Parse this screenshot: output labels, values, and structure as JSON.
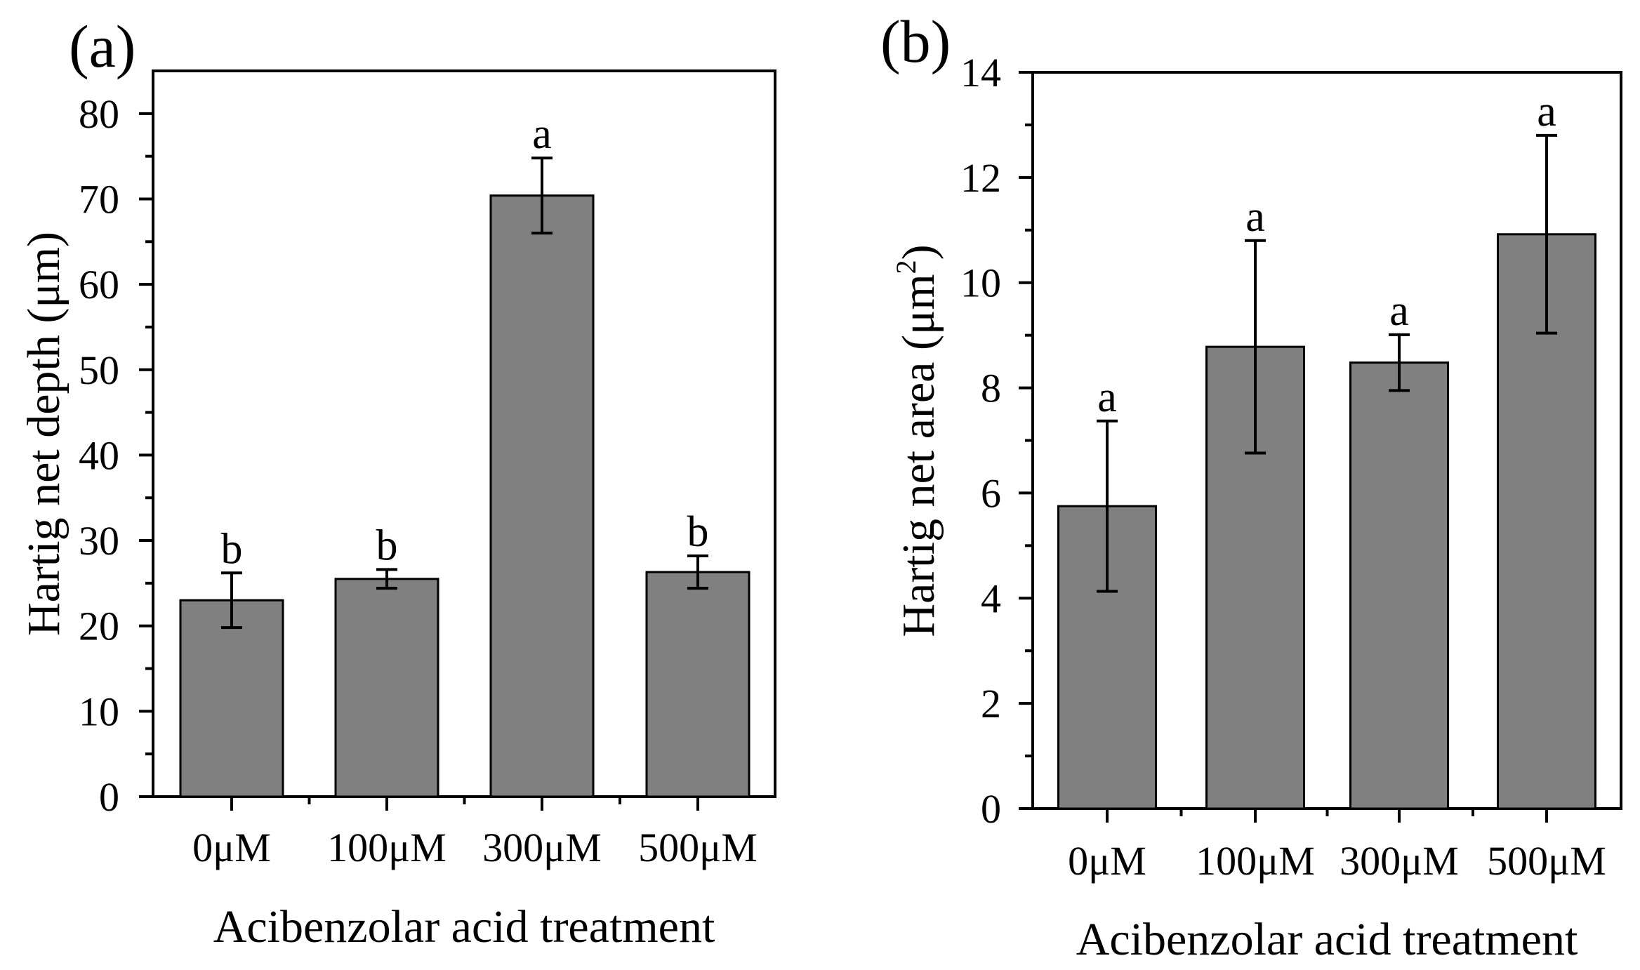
{
  "chart_data": [
    {
      "panel_label": "(a)",
      "type": "bar",
      "categories": [
        "0μM",
        "100μM",
        "300μM",
        "500μM"
      ],
      "values": [
        23.0,
        25.5,
        70.4,
        26.3
      ],
      "errors": [
        3.2,
        1.1,
        4.4,
        1.9
      ],
      "significance": [
        "b",
        "b",
        "a",
        "b"
      ],
      "xlabel": "Acibenzolar acid treatment",
      "ylabel": "Hartig net depth (μm)",
      "ylim": [
        0,
        85
      ],
      "yticks": [
        0,
        10,
        20,
        30,
        40,
        50,
        60,
        70,
        80
      ],
      "bar_color": "#808080"
    },
    {
      "panel_label": "(b)",
      "type": "bar",
      "categories": [
        "0μM",
        "100μM",
        "300μM",
        "500μM"
      ],
      "values": [
        5.75,
        8.78,
        8.48,
        10.92
      ],
      "errors": [
        1.62,
        2.02,
        0.53,
        1.88
      ],
      "significance": [
        "a",
        "a",
        "a",
        "a"
      ],
      "xlabel": "Acibenzolar acid treatment",
      "ylabel_main": "Hartig net area (μm",
      "ylabel_sup": "2",
      "ylabel_close": ")",
      "ylim": [
        0,
        14
      ],
      "yticks": [
        0,
        2,
        4,
        6,
        8,
        10,
        12,
        14
      ],
      "bar_color": "#808080"
    }
  ]
}
